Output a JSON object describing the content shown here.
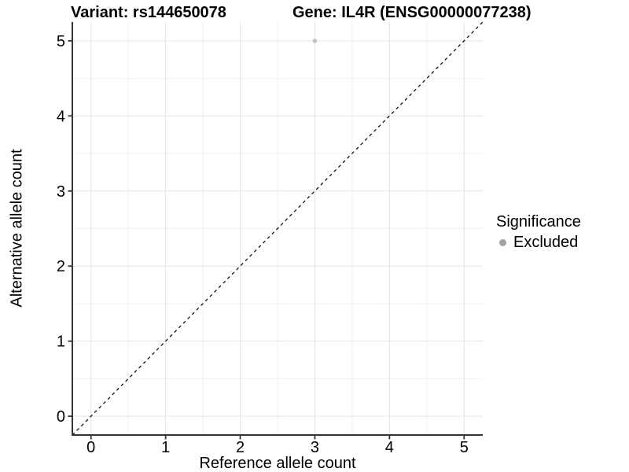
{
  "chart_data": {
    "type": "scatter",
    "titles": {
      "left": "Variant: rs144650078",
      "right": "Gene: IL4R (ENSG00000077238)"
    },
    "xlabel": "Reference allele count",
    "ylabel": "Alternative allele count",
    "xlim": [
      -0.25,
      5.25
    ],
    "ylim": [
      -0.25,
      5.25
    ],
    "x_ticks": [
      0,
      1,
      2,
      3,
      4,
      5
    ],
    "y_ticks": [
      0,
      1,
      2,
      3,
      4,
      5
    ],
    "x_minor": [
      0.5,
      1.5,
      2.5,
      3.5,
      4.5
    ],
    "y_minor": [
      0.5,
      1.5,
      2.5,
      3.5,
      4.5
    ],
    "grid": {
      "major_color": "#e3e3e3",
      "minor_color": "#f0f0f0",
      "background": "#ffffff"
    },
    "axis": {
      "line_color": "#333333",
      "tick_color": "#333333",
      "label_color": "#000000"
    },
    "identity_line": {
      "slope": 1,
      "intercept": 0,
      "color": "#000000",
      "dash": "4,4"
    },
    "points": [
      {
        "x": 3,
        "y": 5,
        "series": "Excluded"
      }
    ],
    "series_colors": {
      "Excluded": "#c3c3c3"
    },
    "legend": {
      "title": "Significance",
      "position": "right",
      "items": [
        {
          "label": "Excluded",
          "color": "#a3a3a3"
        }
      ]
    }
  }
}
